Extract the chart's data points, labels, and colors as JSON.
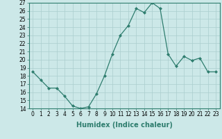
{
  "x": [
    0,
    1,
    2,
    3,
    4,
    5,
    6,
    7,
    8,
    9,
    10,
    11,
    12,
    13,
    14,
    15,
    16,
    17,
    18,
    19,
    20,
    21,
    22,
    23
  ],
  "y": [
    18.5,
    17.5,
    16.5,
    16.5,
    15.5,
    14.3,
    14.0,
    14.2,
    15.8,
    18.0,
    20.7,
    23.0,
    24.2,
    26.3,
    25.8,
    27.0,
    26.3,
    20.7,
    19.2,
    20.4,
    19.9,
    20.2,
    18.5,
    18.5
  ],
  "line_color": "#2e7d6e",
  "marker": "D",
  "marker_size": 2,
  "bg_color": "#cce8e8",
  "grid_color": "#aacece",
  "xlabel": "Humidex (Indice chaleur)",
  "ylim": [
    14,
    27
  ],
  "xlim": [
    -0.5,
    23.5
  ],
  "yticks": [
    14,
    15,
    16,
    17,
    18,
    19,
    20,
    21,
    22,
    23,
    24,
    25,
    26,
    27
  ],
  "xticks": [
    0,
    1,
    2,
    3,
    4,
    5,
    6,
    7,
    8,
    9,
    10,
    11,
    12,
    13,
    14,
    15,
    16,
    17,
    18,
    19,
    20,
    21,
    22,
    23
  ],
  "tick_fontsize": 5.5,
  "xlabel_fontsize": 7,
  "fig_width": 3.2,
  "fig_height": 2.0,
  "dpi": 100
}
